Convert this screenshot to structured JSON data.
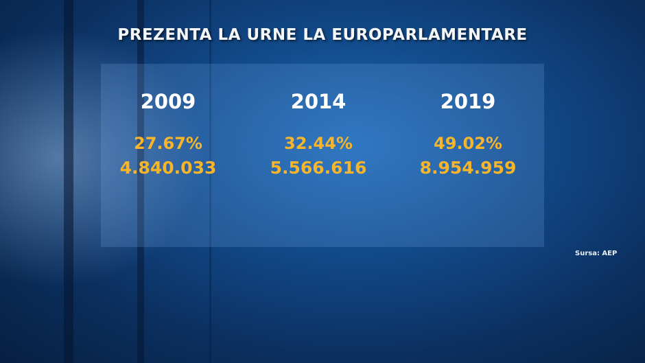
{
  "title": "PREZENTA LA URNE LA EUROPARLAMENTARE",
  "columns": [
    {
      "year": "2009",
      "turnout": "27.67%",
      "voters": "4.840.033"
    },
    {
      "year": "2014",
      "turnout": "32.44%",
      "voters": "5.566.616"
    },
    {
      "year": "2019",
      "turnout": "49.02%",
      "voters": "8.954.959"
    }
  ],
  "source": "Sursa: AEP"
}
